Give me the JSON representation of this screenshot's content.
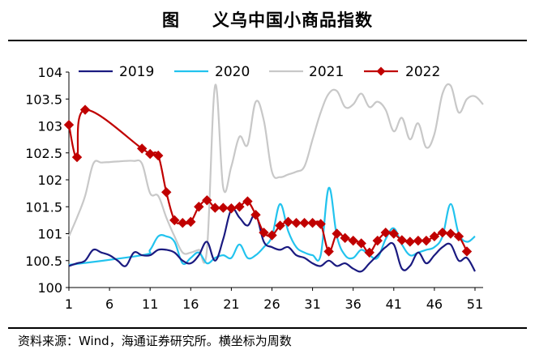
{
  "header": {
    "figure_label": "图",
    "title": "义乌中国小商品指数"
  },
  "source_note": "资料来源：Wind，海通证券研究所。横坐标为周数",
  "colors": {
    "2019": "#1a1a80",
    "2020": "#22c3ee",
    "2021": "#c8c8c8",
    "2022": "#c00000"
  },
  "chart_data": {
    "type": "line",
    "title": "义乌中国小商品指数",
    "xlabel": "",
    "ylabel": "",
    "xlim": [
      1,
      52
    ],
    "ylim": [
      100,
      104
    ],
    "xticks": [
      "1",
      "6",
      "11",
      "16",
      "21",
      "26",
      "31",
      "36",
      "41",
      "46",
      "51"
    ],
    "yticks": [
      "100",
      "100.5",
      "101",
      "101.5",
      "102",
      "102.5",
      "103",
      "103.5",
      "104"
    ],
    "legend_position": "top",
    "series": [
      {
        "name": "2019",
        "marker": "none",
        "x": [
          1,
          2,
          3,
          4,
          5,
          6,
          7,
          8,
          9,
          10,
          11,
          12,
          13,
          14,
          15,
          16,
          17,
          18,
          19,
          20,
          21,
          22,
          23,
          24,
          25,
          26,
          27,
          28,
          29,
          30,
          31,
          32,
          33,
          34,
          35,
          36,
          37,
          38,
          39,
          40,
          41,
          42,
          43,
          44,
          45,
          46,
          47,
          48,
          49,
          50,
          51,
          52
        ],
        "values": [
          100.4,
          100.45,
          100.5,
          100.7,
          100.65,
          100.6,
          100.5,
          100.4,
          100.65,
          100.6,
          100.6,
          100.7,
          100.7,
          100.65,
          100.5,
          100.45,
          100.6,
          100.85,
          100.5,
          100.9,
          101.45,
          101.3,
          101.15,
          101.35,
          100.85,
          100.75,
          100.7,
          100.75,
          100.6,
          100.55,
          100.45,
          100.4,
          100.5,
          100.4,
          100.45,
          100.35,
          100.3,
          100.45,
          100.6,
          100.75,
          100.8,
          100.35,
          100.4,
          100.65,
          100.45,
          100.6,
          100.75,
          100.8,
          100.5,
          100.55,
          100.3,
          null
        ]
      },
      {
        "name": "2020",
        "marker": "none",
        "x": [
          1,
          2,
          3,
          4,
          5,
          6,
          7,
          8,
          9,
          10,
          11,
          12,
          13,
          14,
          15,
          16,
          17,
          18,
          19,
          20,
          21,
          22,
          23,
          24,
          25,
          26,
          27,
          28,
          29,
          30,
          31,
          32,
          33,
          34,
          35,
          36,
          37,
          38,
          39,
          40,
          41,
          42,
          43,
          44,
          45,
          46,
          47,
          48,
          49,
          50,
          51,
          52
        ],
        "values": [
          100.42,
          null,
          null,
          null,
          null,
          null,
          null,
          null,
          null,
          100.6,
          100.7,
          100.95,
          100.95,
          100.85,
          100.45,
          100.55,
          100.65,
          100.45,
          100.55,
          100.6,
          100.55,
          100.8,
          100.55,
          100.6,
          100.75,
          100.95,
          101.55,
          101.05,
          100.75,
          100.65,
          100.6,
          100.6,
          101.85,
          100.95,
          100.6,
          100.55,
          100.7,
          100.6,
          100.55,
          100.9,
          101.1,
          100.8,
          100.6,
          100.65,
          100.7,
          100.75,
          100.95,
          101.55,
          101.0,
          100.85,
          100.95,
          null
        ]
      },
      {
        "name": "2021",
        "marker": "none",
        "x": [
          1,
          2,
          3,
          4,
          5,
          6,
          7,
          8,
          9,
          10,
          11,
          12,
          13,
          14,
          15,
          16,
          17,
          18,
          19,
          20,
          21,
          22,
          23,
          24,
          25,
          26,
          27,
          28,
          29,
          30,
          31,
          32,
          33,
          34,
          35,
          36,
          37,
          38,
          39,
          40,
          41,
          42,
          43,
          44,
          45,
          46,
          47,
          48,
          49,
          50,
          51,
          52
        ],
        "values": [
          100.95,
          101.3,
          101.7,
          102.3,
          102.32,
          102.33,
          102.34,
          102.35,
          102.35,
          102.3,
          101.75,
          101.7,
          101.3,
          100.95,
          100.65,
          100.65,
          100.7,
          100.7,
          103.75,
          101.85,
          102.25,
          102.8,
          102.65,
          103.45,
          103.1,
          102.15,
          102.05,
          102.1,
          102.15,
          102.25,
          102.75,
          103.25,
          103.6,
          103.65,
          103.35,
          103.4,
          103.6,
          103.35,
          103.45,
          103.3,
          102.9,
          103.15,
          102.75,
          103.05,
          102.6,
          102.85,
          103.6,
          103.75,
          103.25,
          103.5,
          103.55,
          103.4
        ]
      },
      {
        "name": "2022",
        "marker": "diamond",
        "x": [
          1,
          2,
          3,
          10,
          11,
          12,
          13,
          14,
          15,
          16,
          17,
          18,
          19,
          20,
          21,
          22,
          23,
          24,
          25,
          26,
          27,
          28,
          29,
          30,
          31,
          32,
          33,
          34,
          35,
          36,
          37,
          38,
          39,
          40,
          41,
          42,
          43,
          44,
          45,
          46,
          47,
          48,
          49,
          50
        ],
        "values": [
          103.02,
          102.42,
          103.3,
          102.58,
          102.48,
          102.45,
          101.77,
          101.25,
          101.2,
          101.22,
          101.5,
          101.62,
          101.48,
          101.48,
          101.47,
          101.5,
          101.6,
          101.35,
          101.02,
          100.97,
          101.15,
          101.22,
          101.2,
          101.2,
          101.2,
          101.18,
          100.67,
          101.0,
          100.92,
          100.87,
          100.82,
          100.65,
          100.87,
          101.02,
          101.0,
          100.88,
          100.85,
          100.87,
          100.87,
          100.95,
          101.02,
          101.0,
          100.95,
          100.67
        ]
      }
    ]
  }
}
